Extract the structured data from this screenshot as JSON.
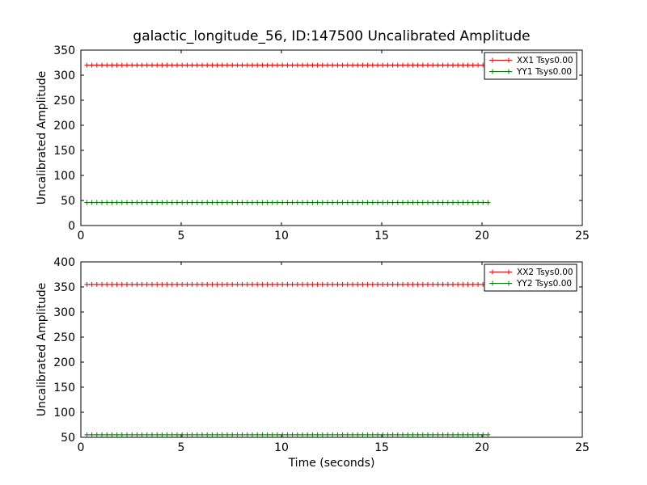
{
  "figure": {
    "title": "galactic_longitude_56, ID:147500 Uncalibrated Amplitude",
    "background_color": "#ffffff",
    "axis_color": "#000000"
  },
  "chart_data": [
    {
      "type": "line",
      "title": "galactic_longitude_56, ID:147500 Uncalibrated Amplitude",
      "xlabel": "",
      "ylabel": "Uncalibrated Amplitude",
      "xlim": [
        0,
        25
      ],
      "ylim": [
        0,
        350
      ],
      "xticks": [
        0,
        5,
        10,
        15,
        20,
        25
      ],
      "yticks": [
        0,
        50,
        100,
        150,
        200,
        250,
        300,
        350
      ],
      "grid": false,
      "legend_position": "upper right",
      "series": [
        {
          "name": "XX1 Tsys0.00",
          "color": "#ff0000",
          "marker": "+",
          "x_start": 0.3,
          "x_end": 20.3,
          "n_points": 81,
          "y_const": 320
        },
        {
          "name": "YY1 Tsys0.00",
          "color": "#008000",
          "marker": "+",
          "x_start": 0.3,
          "x_end": 20.3,
          "n_points": 81,
          "y_const": 46
        }
      ]
    },
    {
      "type": "line",
      "title": "",
      "xlabel": "Time (seconds)",
      "ylabel": "Uncalibrated Amplitude",
      "xlim": [
        0,
        25
      ],
      "ylim": [
        50,
        400
      ],
      "xticks": [
        0,
        5,
        10,
        15,
        20,
        25
      ],
      "yticks": [
        50,
        100,
        150,
        200,
        250,
        300,
        350,
        400
      ],
      "grid": false,
      "legend_position": "upper right",
      "series": [
        {
          "name": "XX2 Tsys0.00",
          "color": "#ff0000",
          "marker": "+",
          "x_start": 0.3,
          "x_end": 20.3,
          "n_points": 81,
          "y_const": 355
        },
        {
          "name": "YY2 Tsys0.00",
          "color": "#008000",
          "marker": "+",
          "x_start": 0.3,
          "x_end": 20.3,
          "n_points": 81,
          "y_const": 55
        }
      ]
    }
  ]
}
